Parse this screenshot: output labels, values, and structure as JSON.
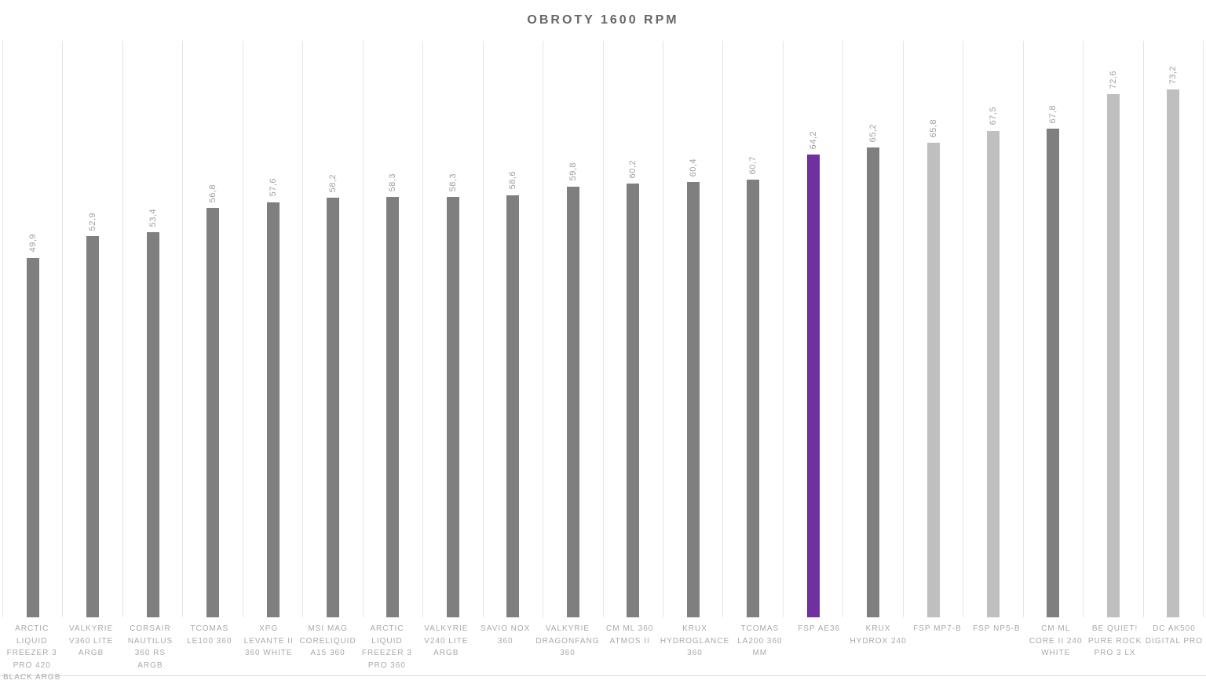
{
  "chart_data": {
    "type": "bar",
    "title": "OBROTY 1600 RPM",
    "xlabel": "",
    "ylabel": "",
    "ylim": [
      0,
      80
    ],
    "legend": "none",
    "grid": "vertical category separators only",
    "value_label_orientation": "rotated-90-vertical",
    "categories": [
      "ARCTIC LIQUID FREEZER 3 PRO 420 BLACK ARGB",
      "VALKYRIE V360 LITE ARGB",
      "CORSAIR NAUTILUS 360 RS ARGB",
      "TCOMAS LE100 360",
      "XPG LEVANTE II 360 WHITE",
      "MSI MAG CORELIQUID A15 360",
      "ARCTIC LIQUID FREEZER 3 PRO 360",
      "VALKYRIE V240 LITE ARGB",
      "SAVIO NOX 360",
      "VALKYRIE DRAGONFANG 360",
      "CM ML 360 ATMOS II",
      "KRUX HYDROGLANCE 360",
      "TCOMAS LA200 360 MM",
      "FSP AE36",
      "KRUX HYDROX 240",
      "FSP MP7-B",
      "FSP NP5-B",
      "CM ML CORE II 240 WHITE",
      "BE QUIET! PURE ROCK PRO 3 LX",
      "DC AK500 DIGITAL PRO"
    ],
    "values": [
      49.9,
      52.9,
      53.4,
      56.8,
      57.6,
      58.2,
      58.3,
      58.3,
      58.6,
      59.8,
      60.2,
      60.4,
      60.7,
      64.2,
      65.2,
      65.8,
      67.5,
      67.8,
      72.6,
      73.2
    ],
    "value_labels": [
      "49,9",
      "52,9",
      "53,4",
      "56,8",
      "57,6",
      "58,2",
      "58,3",
      "58,3",
      "58,6",
      "59,8",
      "60,2",
      "60,4",
      "60,7",
      "64,2",
      "65,2",
      "65,8",
      "67,5",
      "67,8",
      "72,6",
      "73,2"
    ],
    "bar_colors": [
      "#7f7f7f",
      "#7f7f7f",
      "#7f7f7f",
      "#7f7f7f",
      "#7f7f7f",
      "#7f7f7f",
      "#7f7f7f",
      "#7f7f7f",
      "#7f7f7f",
      "#7f7f7f",
      "#7f7f7f",
      "#7f7f7f",
      "#7f7f7f",
      "#7030a0",
      "#7f7f7f",
      "#bfbfbf",
      "#bfbfbf",
      "#7f7f7f",
      "#bfbfbf",
      "#bfbfbf"
    ],
    "colors": {
      "default_bar": "#7f7f7f",
      "highlight_bar": "#7030a0",
      "light_bar": "#bfbfbf",
      "title_text": "#666666",
      "value_text": "#a0a0a0",
      "category_text": "#a9a9a9",
      "gridline": "#e4e4e4"
    }
  }
}
